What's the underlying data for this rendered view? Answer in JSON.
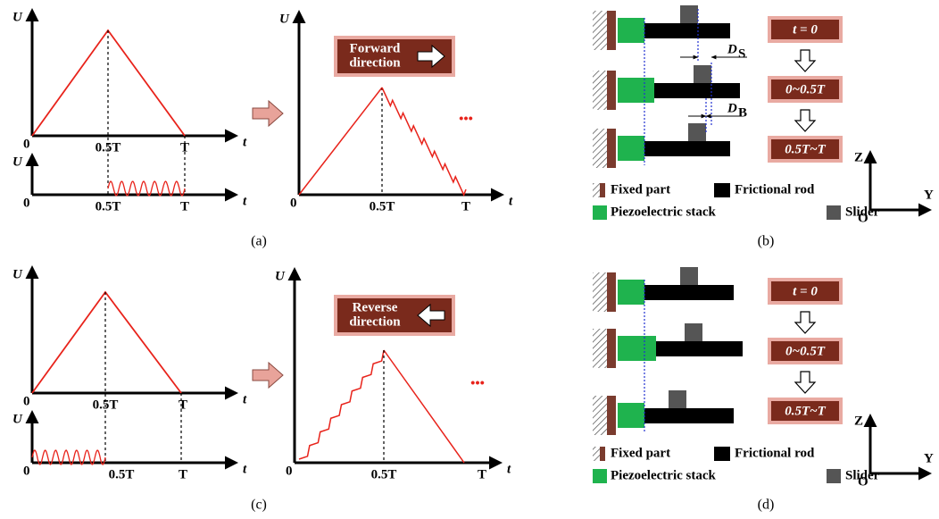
{
  "panel_a": {
    "caption": "(a)",
    "top_plot": {
      "y_label": "U",
      "x_label": "t",
      "origin": "0",
      "ticks": [
        "0.5T",
        "T"
      ]
    },
    "bottom_plot": {
      "y_label": "U",
      "x_label": "t",
      "origin": "0",
      "ticks": [
        "0.5T",
        "T"
      ]
    },
    "result_plot": {
      "y_label": "U",
      "x_label": "t",
      "origin": "0",
      "ticks": [
        "0.5T",
        "T"
      ],
      "direction_label": [
        "Forward",
        "direction"
      ],
      "ellipsis": "•••"
    }
  },
  "panel_b": {
    "caption": "(b)",
    "steps": [
      "t = 0",
      "0~0.5T",
      "0.5T~T"
    ],
    "dimensions": [
      {
        "symbol": "D",
        "subscript": "S"
      },
      {
        "symbol": "D",
        "subscript": "B"
      }
    ],
    "legend": [
      "Fixed part",
      "Frictional rod",
      "Piezoelectric stack",
      "Slider"
    ],
    "axes": {
      "z": "Z",
      "y": "Y",
      "origin": "O"
    }
  },
  "panel_c": {
    "caption": "(c)",
    "top_plot": {
      "y_label": "U",
      "x_label": "t",
      "origin": "0",
      "ticks": [
        "0.5T",
        "T"
      ]
    },
    "bottom_plot": {
      "y_label": "U",
      "x_label": "t",
      "origin": "0",
      "ticks": [
        "0.5T",
        "T"
      ]
    },
    "result_plot": {
      "y_label": "U",
      "x_label": "t",
      "origin": "0",
      "ticks": [
        "0.5T",
        "T"
      ],
      "direction_label": [
        "Reverse",
        "direction"
      ],
      "ellipsis": "•••"
    }
  },
  "panel_d": {
    "caption": "(d)",
    "steps": [
      "t = 0",
      "0~0.5T",
      "0.5T~T"
    ],
    "legend": [
      "Fixed part",
      "Frictional rod",
      "Piezoelectric stack",
      "Slider"
    ],
    "axes": {
      "z": "Z",
      "y": "Y",
      "origin": "O"
    }
  }
}
